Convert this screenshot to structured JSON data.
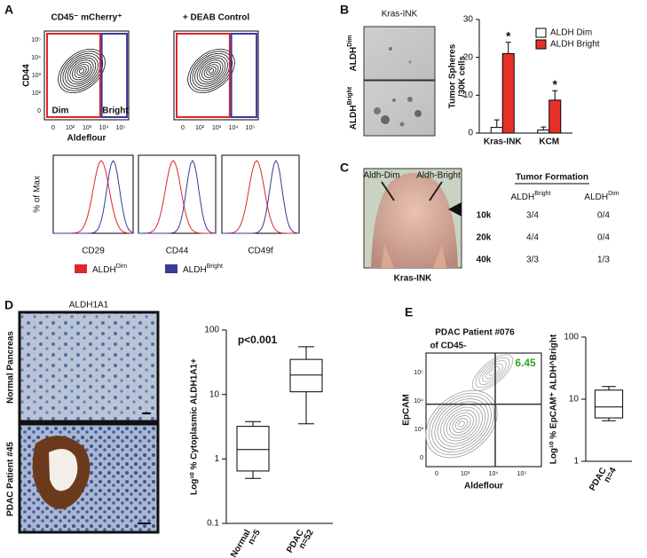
{
  "panels": {
    "A": {
      "label": "A",
      "plot_titles": [
        "CD45⁻ mCherry⁺",
        "+ DEAB Control"
      ],
      "y_label": "CD44",
      "x_label": "Aldeflour",
      "gates": [
        "Dim",
        "Bright"
      ],
      "ticks": [
        "0",
        "10²",
        "10³",
        "10⁴",
        "10⁵"
      ],
      "histogram_y_label": "% of Max",
      "histogram_x_labels": [
        "CD29",
        "CD44",
        "CD49f"
      ],
      "legend": [
        {
          "text": "ALDH",
          "sup": "Dim"
        },
        {
          "text": "ALDH",
          "sup": "Bright"
        }
      ]
    },
    "B": {
      "label": "B",
      "image_title": "Kras-INK",
      "image_rows": [
        {
          "text": "ALDH",
          "sup": "Dim"
        },
        {
          "text": "ALDH",
          "sup": "Bright"
        }
      ]
    },
    "C": {
      "label": "C",
      "photo_labels": [
        "Aldh-Dim",
        "Aldh-Bright"
      ],
      "photo_caption": "Kras-INK",
      "table": {
        "title": "Tumor Formation",
        "headers": [
          {
            "text": "ALDH",
            "sup": "Bright"
          },
          {
            "text": "ALDH",
            "sup": "Dim"
          }
        ],
        "rows": [
          [
            "10k",
            "3/4",
            "0/4"
          ],
          [
            "20k",
            "4/4",
            "0/4"
          ],
          [
            "40k",
            "3/3",
            "1/3"
          ]
        ]
      }
    },
    "D": {
      "label": "D",
      "image_title": "ALDH1A1",
      "image_labels": [
        "Normal Pancreas",
        "PDAC Patient #45"
      ]
    },
    "E": {
      "label": "E",
      "flow_title": [
        "PDAC Patient #076",
        "of CD45-"
      ],
      "flow_y_label": "EpCAM",
      "flow_x_label": "Aldeflour",
      "gate_value": "6.45",
      "flow_ticks": [
        "0",
        "10³",
        "10⁴",
        "10⁵"
      ]
    }
  },
  "chart_data": [
    {
      "type": "bar",
      "y_label": [
        "Tumor Spheres",
        "/30K cells"
      ],
      "categories": [
        "Kras-INK",
        "KCM"
      ],
      "series": [
        {
          "name": "ALDH Dim",
          "color": "#ffffff",
          "values": [
            1.5,
            0.8
          ],
          "errors": [
            2,
            0.8
          ]
        },
        {
          "name": "ALDH Bright",
          "color": "#e8302a",
          "values": [
            21,
            8.7
          ],
          "errors": [
            3,
            2.5
          ]
        }
      ],
      "annotations": [
        "*",
        "*"
      ],
      "ylim": [
        0,
        30
      ],
      "yticks": [
        0,
        10,
        20,
        30
      ]
    },
    {
      "type": "box",
      "y_label": "Log¹⁰ % Cytoplasmic ALDH1A1+",
      "annotation": "p<0.001",
      "categories": [
        [
          "Normal",
          "n=5"
        ],
        [
          "PDAC",
          "n=52"
        ]
      ],
      "boxes": [
        {
          "min": 0.5,
          "q1": 0.65,
          "median": 1.4,
          "q3": 3.2,
          "max": 3.8
        },
        {
          "min": 3.5,
          "q1": 11,
          "median": 20,
          "q3": 35,
          "max": 55
        }
      ],
      "log_scale": true,
      "ylim": [
        0.1,
        100
      ],
      "yticks": [
        0.1,
        1,
        10,
        100
      ]
    },
    {
      "type": "box",
      "y_label": "Log¹⁰ % EpCAM⁺ ALDH^Bright",
      "categories": [
        [
          "PDAC",
          "n=4"
        ]
      ],
      "boxes": [
        {
          "min": 4.5,
          "q1": 5,
          "median": 7.5,
          "q3": 14,
          "max": 16
        }
      ],
      "log_scale": true,
      "ylim": [
        1,
        100
      ],
      "yticks": [
        1,
        10,
        100
      ]
    }
  ]
}
